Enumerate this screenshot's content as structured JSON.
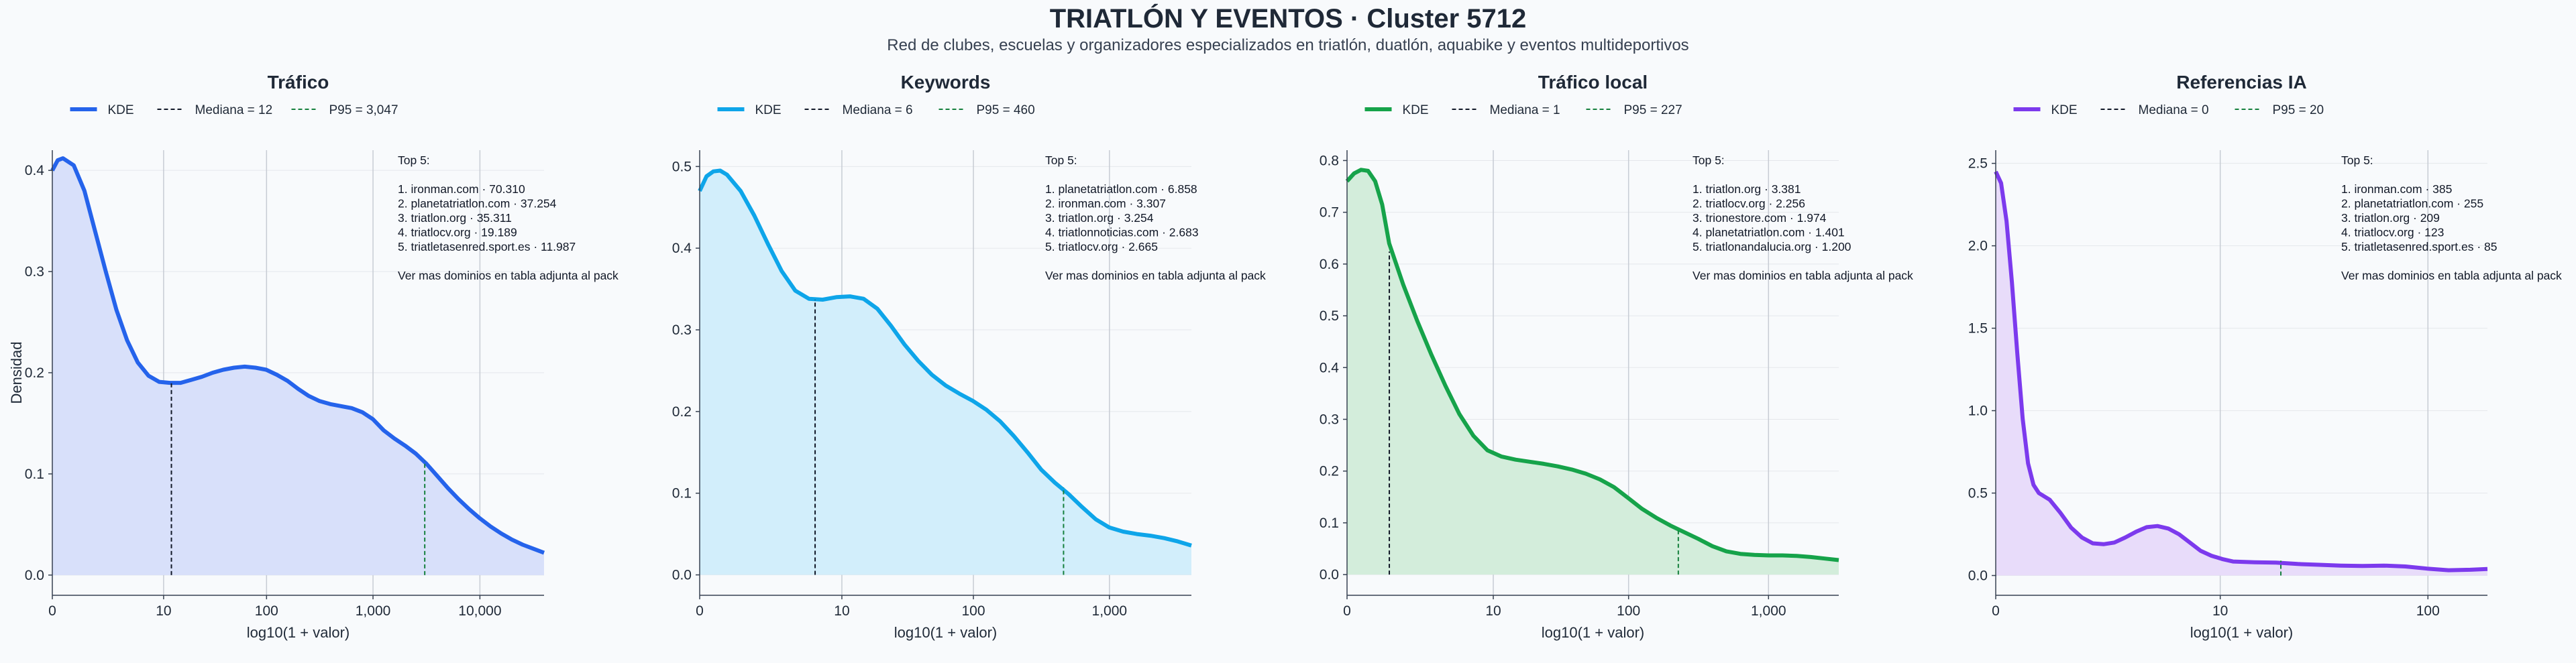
{
  "title": "TRIATLÓN Y EVENTOS · Cluster 5712",
  "subtitle": "Red de clubes, escuelas y organizadores especializados en triatlón, duatlón, aquabike y eventos multideportivos",
  "chart_data": [
    {
      "type": "area",
      "title": "Tráfico",
      "xlabel": "log10(1 + valor)",
      "ylabel": "Densidad",
      "color": "#2563eb",
      "fill": "#d8e0fa",
      "xlim": [
        0,
        4.6
      ],
      "ylim": [
        -0.02,
        0.42
      ],
      "xticks": [
        {
          "v": 0,
          "label": "0"
        },
        {
          "v": 1.041,
          "label": "10"
        },
        {
          "v": 2.004,
          "label": "100"
        },
        {
          "v": 3.0,
          "label": "1,000"
        },
        {
          "v": 4.0,
          "label": "10,000"
        }
      ],
      "yticks": [
        {
          "v": 0.0,
          "label": "0.0"
        },
        {
          "v": 0.1,
          "label": "0.1"
        },
        {
          "v": 0.2,
          "label": "0.2"
        },
        {
          "v": 0.3,
          "label": "0.3"
        },
        {
          "v": 0.4,
          "label": "0.4"
        }
      ],
      "legend": [
        "KDE",
        "Mediana = 12",
        "P95 = 3,047"
      ],
      "median_x": 1.114,
      "median_y": 0.19,
      "p95_x": 3.484,
      "p95_y": 0.113,
      "kde": [
        [
          0,
          0.4
        ],
        [
          0.05,
          0.41
        ],
        [
          0.1,
          0.412
        ],
        [
          0.2,
          0.405
        ],
        [
          0.3,
          0.38
        ],
        [
          0.4,
          0.34
        ],
        [
          0.5,
          0.3
        ],
        [
          0.6,
          0.262
        ],
        [
          0.7,
          0.232
        ],
        [
          0.8,
          0.21
        ],
        [
          0.9,
          0.197
        ],
        [
          1.0,
          0.191
        ],
        [
          1.1,
          0.19
        ],
        [
          1.2,
          0.19
        ],
        [
          1.3,
          0.193
        ],
        [
          1.4,
          0.196
        ],
        [
          1.5,
          0.2
        ],
        [
          1.6,
          0.203
        ],
        [
          1.7,
          0.205
        ],
        [
          1.8,
          0.206
        ],
        [
          1.9,
          0.205
        ],
        [
          2.0,
          0.203
        ],
        [
          2.1,
          0.198
        ],
        [
          2.2,
          0.192
        ],
        [
          2.3,
          0.184
        ],
        [
          2.4,
          0.177
        ],
        [
          2.5,
          0.172
        ],
        [
          2.6,
          0.169
        ],
        [
          2.7,
          0.167
        ],
        [
          2.8,
          0.165
        ],
        [
          2.9,
          0.161
        ],
        [
          3.0,
          0.154
        ],
        [
          3.1,
          0.143
        ],
        [
          3.2,
          0.135
        ],
        [
          3.3,
          0.128
        ],
        [
          3.4,
          0.12
        ],
        [
          3.5,
          0.11
        ],
        [
          3.6,
          0.098
        ],
        [
          3.7,
          0.086
        ],
        [
          3.8,
          0.075
        ],
        [
          3.9,
          0.065
        ],
        [
          4.0,
          0.056
        ],
        [
          4.1,
          0.048
        ],
        [
          4.2,
          0.041
        ],
        [
          4.3,
          0.035
        ],
        [
          4.4,
          0.03
        ],
        [
          4.5,
          0.026
        ],
        [
          4.6,
          0.022
        ]
      ],
      "annotation": [
        "Top 5:",
        "",
        "1. ironman.com · 70.310",
        "2. planetatriatlon.com · 37.254",
        "3. triatlon.org · 35.311",
        "4. triatlocv.org · 19.189",
        "5. triatletasenred.sport.es · 11.987",
        "",
        "Ver mas dominios en tabla adjunta al pack"
      ]
    },
    {
      "type": "area",
      "title": "Keywords",
      "xlabel": "log10(1 + valor)",
      "ylabel": "",
      "color": "#0ea5e9",
      "fill": "#d2eefb",
      "xlim": [
        0,
        3.6
      ],
      "ylim": [
        -0.025,
        0.52
      ],
      "xticks": [
        {
          "v": 0,
          "label": "0"
        },
        {
          "v": 1.041,
          "label": "10"
        },
        {
          "v": 2.004,
          "label": "100"
        },
        {
          "v": 3.0,
          "label": "1,000"
        }
      ],
      "yticks": [
        {
          "v": 0.0,
          "label": "0.0"
        },
        {
          "v": 0.1,
          "label": "0.1"
        },
        {
          "v": 0.2,
          "label": "0.2"
        },
        {
          "v": 0.3,
          "label": "0.3"
        },
        {
          "v": 0.4,
          "label": "0.4"
        },
        {
          "v": 0.5,
          "label": "0.5"
        }
      ],
      "legend": [
        "KDE",
        "Mediana = 6",
        "P95 = 460"
      ],
      "median_x": 0.845,
      "median_y": 0.337,
      "p95_x": 2.664,
      "p95_y": 0.107,
      "kde": [
        [
          0,
          0.47
        ],
        [
          0.05,
          0.488
        ],
        [
          0.1,
          0.494
        ],
        [
          0.15,
          0.495
        ],
        [
          0.2,
          0.49
        ],
        [
          0.3,
          0.47
        ],
        [
          0.4,
          0.44
        ],
        [
          0.5,
          0.405
        ],
        [
          0.6,
          0.372
        ],
        [
          0.7,
          0.348
        ],
        [
          0.8,
          0.338
        ],
        [
          0.9,
          0.337
        ],
        [
          1.0,
          0.34
        ],
        [
          1.1,
          0.341
        ],
        [
          1.2,
          0.338
        ],
        [
          1.3,
          0.326
        ],
        [
          1.4,
          0.305
        ],
        [
          1.5,
          0.282
        ],
        [
          1.6,
          0.262
        ],
        [
          1.7,
          0.245
        ],
        [
          1.8,
          0.232
        ],
        [
          1.9,
          0.222
        ],
        [
          2.0,
          0.213
        ],
        [
          2.1,
          0.202
        ],
        [
          2.2,
          0.188
        ],
        [
          2.3,
          0.17
        ],
        [
          2.4,
          0.15
        ],
        [
          2.5,
          0.129
        ],
        [
          2.6,
          0.113
        ],
        [
          2.7,
          0.099
        ],
        [
          2.8,
          0.083
        ],
        [
          2.9,
          0.068
        ],
        [
          3.0,
          0.058
        ],
        [
          3.1,
          0.053
        ],
        [
          3.2,
          0.05
        ],
        [
          3.3,
          0.048
        ],
        [
          3.4,
          0.045
        ],
        [
          3.5,
          0.041
        ],
        [
          3.6,
          0.036
        ]
      ],
      "annotation": [
        "Top 5:",
        "",
        "1. planetatriatlon.com · 6.858",
        "2. ironman.com · 3.307",
        "3. triatlon.org · 3.254",
        "4. triatlonnoticias.com · 2.683",
        "5. triatlocv.org · 2.665",
        "",
        "Ver mas dominios en tabla adjunta al pack"
      ]
    },
    {
      "type": "area",
      "title": "Tráfico local",
      "xlabel": "log10(1 + valor)",
      "ylabel": "",
      "color": "#16a34a",
      "fill": "#d3eddb",
      "xlim": [
        0,
        3.5
      ],
      "ylim": [
        -0.04,
        0.82
      ],
      "xticks": [
        {
          "v": 0,
          "label": "0"
        },
        {
          "v": 1.041,
          "label": "10"
        },
        {
          "v": 2.004,
          "label": "100"
        },
        {
          "v": 3.0,
          "label": "1,000"
        }
      ],
      "yticks": [
        {
          "v": 0.0,
          "label": "0.0"
        },
        {
          "v": 0.1,
          "label": "0.1"
        },
        {
          "v": 0.2,
          "label": "0.2"
        },
        {
          "v": 0.3,
          "label": "0.3"
        },
        {
          "v": 0.4,
          "label": "0.4"
        },
        {
          "v": 0.5,
          "label": "0.5"
        },
        {
          "v": 0.6,
          "label": "0.6"
        },
        {
          "v": 0.7,
          "label": "0.7"
        },
        {
          "v": 0.8,
          "label": "0.8"
        }
      ],
      "legend": [
        "KDE",
        "Mediana = 1",
        "P95 = 227"
      ],
      "median_x": 0.301,
      "median_y": 0.624,
      "p95_x": 2.358,
      "p95_y": 0.085,
      "kde": [
        [
          0,
          0.76
        ],
        [
          0.05,
          0.775
        ],
        [
          0.1,
          0.782
        ],
        [
          0.15,
          0.78
        ],
        [
          0.2,
          0.76
        ],
        [
          0.25,
          0.715
        ],
        [
          0.3,
          0.64
        ],
        [
          0.4,
          0.56
        ],
        [
          0.5,
          0.49
        ],
        [
          0.6,
          0.425
        ],
        [
          0.7,
          0.365
        ],
        [
          0.8,
          0.31
        ],
        [
          0.9,
          0.268
        ],
        [
          1.0,
          0.24
        ],
        [
          1.1,
          0.228
        ],
        [
          1.2,
          0.222
        ],
        [
          1.3,
          0.218
        ],
        [
          1.4,
          0.214
        ],
        [
          1.5,
          0.209
        ],
        [
          1.6,
          0.203
        ],
        [
          1.7,
          0.195
        ],
        [
          1.8,
          0.184
        ],
        [
          1.9,
          0.169
        ],
        [
          2.0,
          0.148
        ],
        [
          2.1,
          0.127
        ],
        [
          2.2,
          0.11
        ],
        [
          2.3,
          0.095
        ],
        [
          2.4,
          0.082
        ],
        [
          2.5,
          0.069
        ],
        [
          2.6,
          0.055
        ],
        [
          2.7,
          0.045
        ],
        [
          2.8,
          0.04
        ],
        [
          2.9,
          0.038
        ],
        [
          3.0,
          0.037
        ],
        [
          3.1,
          0.037
        ],
        [
          3.2,
          0.036
        ],
        [
          3.3,
          0.034
        ],
        [
          3.4,
          0.031
        ],
        [
          3.5,
          0.028
        ]
      ],
      "annotation": [
        "Top 5:",
        "",
        "1. triatlon.org · 3.381",
        "2. triatlocv.org · 2.256",
        "3. trionestore.com · 1.974",
        "4. planetatriatlon.com · 1.401",
        "5. triatlonandalucia.org · 1.200",
        "",
        "Ver mas dominios en tabla adjunta al pack"
      ]
    },
    {
      "type": "area",
      "title": "Referencias IA",
      "xlabel": "log10(1 + valor)",
      "ylabel": "",
      "color": "#7c3aed",
      "fill": "#e8dcfa",
      "xlim": [
        0,
        2.28
      ],
      "ylim": [
        -0.12,
        2.58
      ],
      "xticks": [
        {
          "v": 0,
          "label": "0"
        },
        {
          "v": 1.041,
          "label": "10"
        },
        {
          "v": 2.004,
          "label": "100"
        }
      ],
      "yticks": [
        {
          "v": 0.0,
          "label": "0.0"
        },
        {
          "v": 0.5,
          "label": "0.5"
        },
        {
          "v": 1.0,
          "label": "1.0"
        },
        {
          "v": 1.5,
          "label": "1.5"
        },
        {
          "v": 2.0,
          "label": "2.0"
        },
        {
          "v": 2.5,
          "label": "2.5"
        }
      ],
      "legend": [
        "KDE",
        "Mediana = 0",
        "P95 = 20"
      ],
      "median_x": 0,
      "median_y": 0,
      "p95_x": 1.322,
      "p95_y": 0.09,
      "kde": [
        [
          0,
          2.45
        ],
        [
          0.025,
          2.38
        ],
        [
          0.05,
          2.15
        ],
        [
          0.075,
          1.78
        ],
        [
          0.1,
          1.35
        ],
        [
          0.125,
          0.95
        ],
        [
          0.15,
          0.68
        ],
        [
          0.175,
          0.55
        ],
        [
          0.2,
          0.5
        ],
        [
          0.25,
          0.46
        ],
        [
          0.3,
          0.38
        ],
        [
          0.35,
          0.29
        ],
        [
          0.4,
          0.23
        ],
        [
          0.45,
          0.195
        ],
        [
          0.5,
          0.19
        ],
        [
          0.55,
          0.2
        ],
        [
          0.6,
          0.23
        ],
        [
          0.65,
          0.265
        ],
        [
          0.7,
          0.293
        ],
        [
          0.75,
          0.3
        ],
        [
          0.8,
          0.285
        ],
        [
          0.85,
          0.25
        ],
        [
          0.9,
          0.2
        ],
        [
          0.95,
          0.15
        ],
        [
          1.0,
          0.12
        ],
        [
          1.05,
          0.1
        ],
        [
          1.1,
          0.085
        ],
        [
          1.2,
          0.08
        ],
        [
          1.3,
          0.078
        ],
        [
          1.4,
          0.07
        ],
        [
          1.5,
          0.065
        ],
        [
          1.6,
          0.06
        ],
        [
          1.7,
          0.058
        ],
        [
          1.8,
          0.06
        ],
        [
          1.9,
          0.055
        ],
        [
          2.0,
          0.042
        ],
        [
          2.1,
          0.032
        ],
        [
          2.2,
          0.035
        ],
        [
          2.28,
          0.04
        ]
      ],
      "annotation": [
        "Top 5:",
        "",
        "1. ironman.com · 385",
        "2. planetatriatlon.com · 255",
        "3. triatlon.org · 209",
        "4. triatlocv.org · 123",
        "5. triatletasenred.sport.es · 85",
        "",
        "Ver mas dominios en tabla adjunta al pack"
      ]
    }
  ]
}
